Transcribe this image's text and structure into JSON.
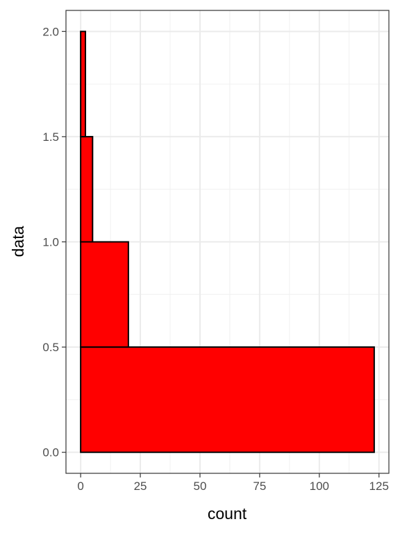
{
  "chart_data": {
    "type": "histogram",
    "orientation": "horizontal",
    "bins": [
      0,
      0.5,
      1.0,
      1.5,
      2.0
    ],
    "values": [
      123,
      20,
      5,
      2
    ],
    "color": "#ff0000",
    "edgecolor": "#000000",
    "xlabel": "count",
    "ylabel": "data",
    "xlim": [
      -6.15,
      129.15
    ],
    "xticks": [
      0,
      25,
      50,
      75,
      100,
      125
    ],
    "ylim": [
      -0.1,
      2.1
    ],
    "yticks": [
      {
        "value": 0,
        "label": "0.0"
      },
      0.5,
      {
        "value": 1,
        "label": "1.0"
      },
      1.5,
      {
        "value": 2,
        "label": "2.0"
      }
    ],
    "grid": true
  }
}
